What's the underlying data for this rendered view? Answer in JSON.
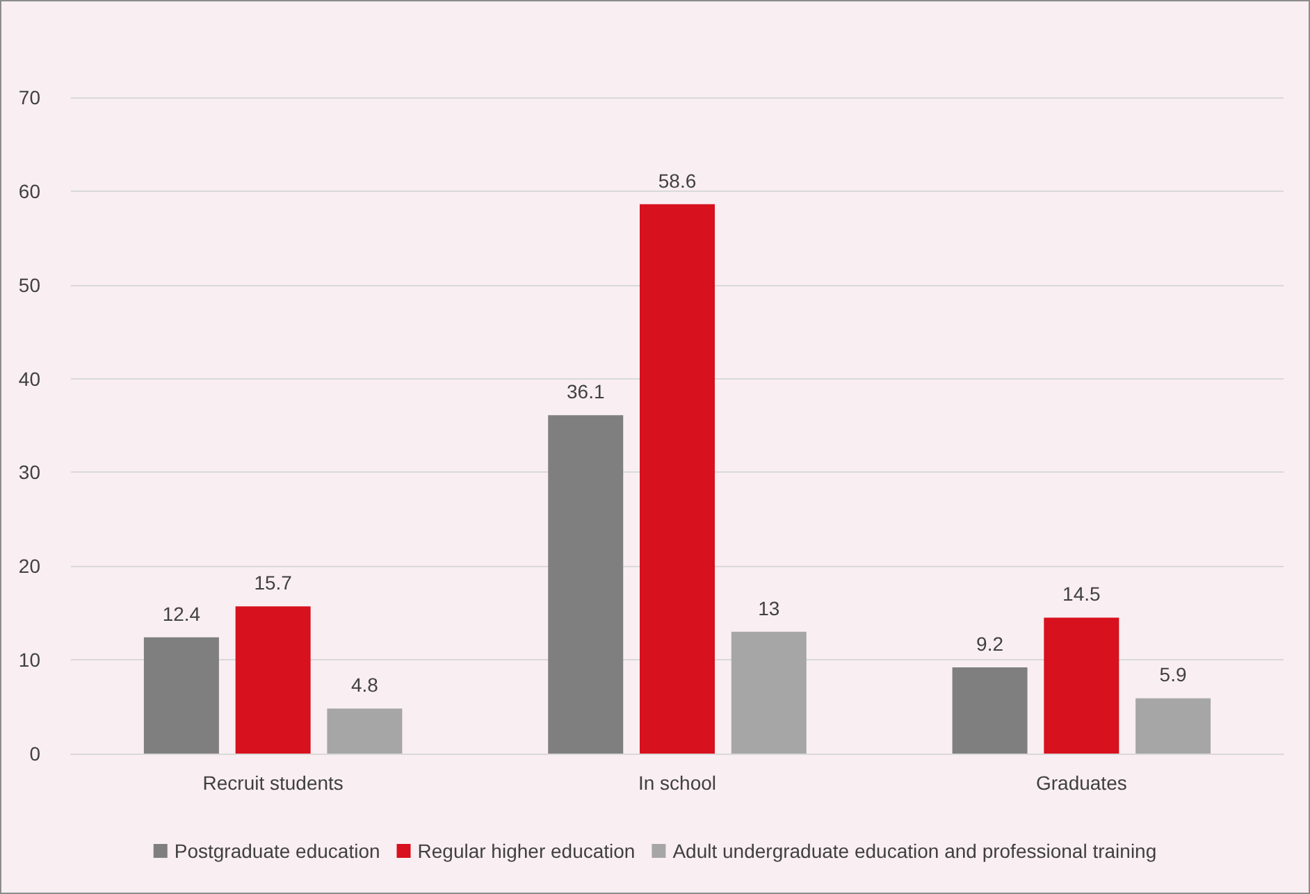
{
  "chart_data": {
    "type": "bar",
    "categories": [
      "Recruit students",
      "In school",
      "Graduates"
    ],
    "series": [
      {
        "name": "Postgraduate education",
        "color": "#7f7f7f",
        "values": [
          12.4,
          36.1,
          9.2
        ]
      },
      {
        "name": "Regular higher education",
        "color": "#d7111d",
        "values": [
          15.7,
          58.6,
          14.5
        ]
      },
      {
        "name": "Adult undergraduate education and professional training",
        "color": "#a6a6a6",
        "values": [
          4.8,
          13,
          5.9
        ]
      }
    ],
    "ylim": [
      0,
      70
    ],
    "yticks": [
      0,
      10,
      20,
      30,
      40,
      50,
      60,
      70
    ],
    "grid": "y",
    "legend": "bottom",
    "data_labels": true
  }
}
